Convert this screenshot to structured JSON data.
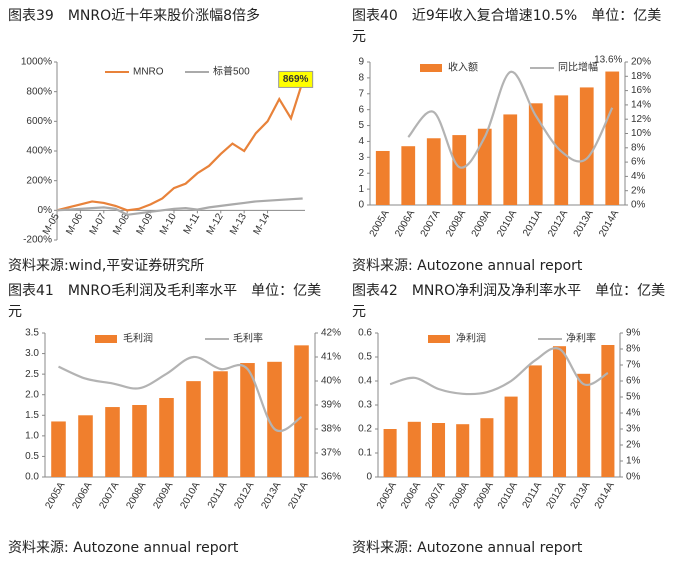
{
  "chart_data": [
    {
      "type": "line",
      "title": "图表39　MNRO近十年来股价涨幅8倍多",
      "source": "资料来源:wind,平安证券研究所",
      "annotation": "869%",
      "x": [
        0,
        0.5,
        1,
        1.5,
        2,
        2.5,
        3,
        3.5,
        4,
        4.5,
        5,
        5.5,
        6,
        6.5,
        7,
        7.5,
        8,
        8.5,
        9,
        9.5,
        10,
        10.5
      ],
      "xlim": [
        0,
        10.6
      ],
      "xticks": [
        {
          "value": 0,
          "label": "M-05"
        },
        {
          "value": 1,
          "label": "M-06"
        },
        {
          "value": 2,
          "label": "M-07"
        },
        {
          "value": 3,
          "label": "M-08"
        },
        {
          "value": 4,
          "label": "M-09"
        },
        {
          "value": 5,
          "label": "M-10"
        },
        {
          "value": 6,
          "label": "M-11"
        },
        {
          "value": 7,
          "label": "M-12"
        },
        {
          "value": 8,
          "label": "M-13"
        },
        {
          "value": 9,
          "label": "M-14"
        }
      ],
      "ylim": [
        -200,
        1000
      ],
      "yticks": [
        {
          "value": 1000,
          "label": "1000%"
        },
        {
          "value": 800,
          "label": "800%"
        },
        {
          "value": 600,
          "label": "600%"
        },
        {
          "value": 400,
          "label": "400%"
        },
        {
          "value": 200,
          "label": "200%"
        },
        {
          "value": 0,
          "label": "0%"
        },
        {
          "value": -200,
          "label": "-200%"
        }
      ],
      "series": [
        {
          "name": "MNRO",
          "color": "#e8823a",
          "values": [
            0,
            20,
            40,
            60,
            50,
            30,
            0,
            10,
            40,
            80,
            150,
            180,
            250,
            300,
            380,
            450,
            400,
            520,
            600,
            750,
            620,
            869
          ]
        },
        {
          "name": "标普500",
          "color": "#aaaaaa",
          "values": [
            0,
            5,
            10,
            15,
            20,
            10,
            -30,
            -20,
            -10,
            0,
            10,
            15,
            5,
            20,
            30,
            40,
            50,
            60,
            65,
            70,
            75,
            80
          ]
        }
      ]
    },
    {
      "type": "bar",
      "title": "图表40　近9年收入复合增速10.5%　单位：亿美元",
      "source": "资料来源: Autozone annual report",
      "annotation": "13.6%",
      "categories": [
        "2005A",
        "2006A",
        "2007A",
        "2008A",
        "2009A",
        "2010A",
        "2011A",
        "2012A",
        "2013A",
        "2014A"
      ],
      "ylim": [
        0,
        9
      ],
      "yticks": [
        0,
        1,
        2,
        3,
        4,
        5,
        6,
        7,
        8,
        9
      ],
      "y2lim": [
        0,
        20
      ],
      "y2ticks": [
        {
          "value": 0,
          "label": "0%"
        },
        {
          "value": 2,
          "label": "2%"
        },
        {
          "value": 4,
          "label": "4%"
        },
        {
          "value": 6,
          "label": "6%"
        },
        {
          "value": 8,
          "label": "8%"
        },
        {
          "value": 10,
          "label": "10%"
        },
        {
          "value": 12,
          "label": "12%"
        },
        {
          "value": 14,
          "label": "14%"
        },
        {
          "value": 16,
          "label": "16%"
        },
        {
          "value": 18,
          "label": "18%"
        },
        {
          "value": 20,
          "label": "20%"
        }
      ],
      "series": [
        {
          "name": "收入额",
          "color": "#f07f2d",
          "values": [
            3.4,
            3.7,
            4.2,
            4.4,
            4.8,
            5.7,
            6.4,
            6.9,
            7.4,
            8.4
          ]
        },
        {
          "name": "同比增幅",
          "color": "#b3b3b3",
          "axis": "y2",
          "values": [
            null,
            9.5,
            13,
            5.3,
            9.5,
            18.6,
            12.5,
            7.5,
            6.5,
            13.6
          ]
        }
      ]
    },
    {
      "type": "bar",
      "title": "图表41　MNRO毛利润及毛利率水平　单位：亿美元",
      "source": "资料来源: Autozone annual report",
      "categories": [
        "2005A",
        "2006A",
        "2007A",
        "2008A",
        "2009A",
        "2010A",
        "2011A",
        "2012A",
        "2013A",
        "2014A"
      ],
      "ylim": [
        0,
        3.5
      ],
      "yticks": [
        {
          "value": 0,
          "label": "0.0"
        },
        0.5,
        {
          "value": 1,
          "label": "1.0"
        },
        1.5,
        {
          "value": 2,
          "label": "2.0"
        },
        2.5,
        {
          "value": 3,
          "label": "3.0"
        },
        3.5
      ],
      "y2lim": [
        36,
        42
      ],
      "y2ticks": [
        {
          "value": 36,
          "label": "36%"
        },
        {
          "value": 37,
          "label": "37%"
        },
        {
          "value": 38,
          "label": "38%"
        },
        {
          "value": 39,
          "label": "39%"
        },
        {
          "value": 40,
          "label": "40%"
        },
        {
          "value": 41,
          "label": "41%"
        },
        {
          "value": 42,
          "label": "42%"
        }
      ],
      "series": [
        {
          "name": "毛利润",
          "color": "#f07f2d",
          "values": [
            1.35,
            1.5,
            1.7,
            1.75,
            1.92,
            2.33,
            2.57,
            2.77,
            2.8,
            3.2
          ]
        },
        {
          "name": "毛利率",
          "color": "#b3b3b3",
          "axis": "y2",
          "values": [
            40.6,
            40.1,
            39.9,
            39.7,
            40.3,
            41.0,
            40.5,
            40.5,
            38.0,
            38.5
          ]
        }
      ]
    },
    {
      "type": "bar",
      "title": "图表42　MNRO净利润及净利率水平　单位：亿美元",
      "source": "资料来源: Autozone annual report",
      "categories": [
        "2005A",
        "2006A",
        "2007A",
        "2008A",
        "2009A",
        "2010A",
        "2011A",
        "2012A",
        "2013A",
        "2014A"
      ],
      "ylim": [
        0,
        0.6
      ],
      "yticks": [
        0,
        0.1,
        0.2,
        0.3,
        0.4,
        0.5,
        0.6
      ],
      "y2lim": [
        0,
        9
      ],
      "y2ticks": [
        {
          "value": 0,
          "label": "0%"
        },
        {
          "value": 1,
          "label": "1%"
        },
        {
          "value": 2,
          "label": "2%"
        },
        {
          "value": 3,
          "label": "3%"
        },
        {
          "value": 4,
          "label": "4%"
        },
        {
          "value": 5,
          "label": "5%"
        },
        {
          "value": 6,
          "label": "6%"
        },
        {
          "value": 7,
          "label": "7%"
        },
        {
          "value": 8,
          "label": "8%"
        },
        {
          "value": 9,
          "label": "9%"
        }
      ],
      "series": [
        {
          "name": "净利润",
          "color": "#f07f2d",
          "values": [
            0.2,
            0.23,
            0.225,
            0.22,
            0.245,
            0.335,
            0.465,
            0.545,
            0.43,
            0.55
          ]
        },
        {
          "name": "净利率",
          "color": "#b3b3b3",
          "axis": "y2",
          "values": [
            5.8,
            6.2,
            5.5,
            5.2,
            5.3,
            6.0,
            7.3,
            8.0,
            5.8,
            6.5
          ]
        }
      ]
    }
  ]
}
